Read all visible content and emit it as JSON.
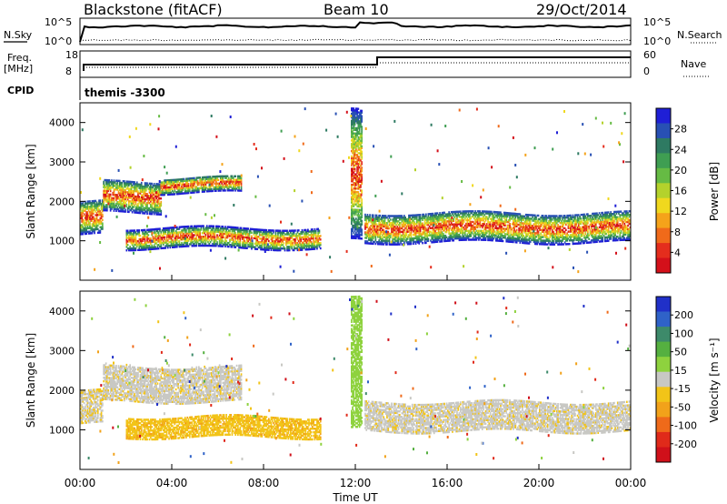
{
  "header": {
    "station": "Blackstone (fitACF)",
    "beam": "Beam 10",
    "date": "29/Oct/2014"
  },
  "params": {
    "nsky_label": "N.Sky",
    "nsky_ticks": [
      "10^5",
      "10^0"
    ],
    "nsearch_label": "N.Search",
    "nsearch_ticks": [
      "10^5",
      "10^0"
    ],
    "freq_label": "Freq.",
    "freq_unit": "[MHz]",
    "freq_ticks": [
      "18",
      "8"
    ],
    "nave_label": "Nave",
    "nave_ticks": [
      "60",
      "0"
    ],
    "cpid_label": "CPID",
    "cpid_value": "themis -3300"
  },
  "chart_data": [
    {
      "type": "heatmap",
      "name": "power",
      "ylabel": "Slant Range [km]",
      "yticks": [
        1000,
        2000,
        3000,
        4000
      ],
      "ylim": [
        0,
        4500
      ],
      "xlim_hours": [
        0,
        24
      ],
      "colorbar_label": "Power [dB]",
      "colorbar_ticks": [
        "28",
        "24",
        "20",
        "16",
        "12",
        "8",
        "4"
      ],
      "colorbar_colors": [
        "#1f1fd6",
        "#2850b4",
        "#2e7a62",
        "#3f9e52",
        "#66bb44",
        "#b4d22c",
        "#f0d81e",
        "#f5a31a",
        "#f06a1a",
        "#e42d1d",
        "#d4101a"
      ],
      "bands": [
        {
          "start_h": 0.0,
          "end_h": 1.0,
          "range_km": [
            1150,
            2000
          ]
        },
        {
          "start_h": 1.0,
          "end_h": 3.5,
          "range_km": [
            1700,
            2500
          ]
        },
        {
          "start_h": 3.5,
          "end_h": 7.0,
          "range_km": [
            2200,
            2600
          ]
        },
        {
          "start_h": 2.0,
          "end_h": 10.5,
          "range_km": [
            800,
            1300
          ]
        },
        {
          "start_h": 11.8,
          "end_h": 12.3,
          "range_km": [
            1000,
            4300
          ]
        },
        {
          "start_h": 12.4,
          "end_h": 24.0,
          "range_km": [
            950,
            1700
          ]
        }
      ]
    },
    {
      "type": "heatmap",
      "name": "velocity",
      "ylabel": "Slant Range [km]",
      "yticks": [
        1000,
        2000,
        3000,
        4000
      ],
      "ylim": [
        0,
        4500
      ],
      "xlim_hours": [
        0,
        24
      ],
      "colorbar_label": "Velocity [m s⁻¹]",
      "colorbar_ticks": [
        "200",
        "100",
        "50",
        "15",
        "-15",
        "-50",
        "-100",
        "-200"
      ],
      "colorbar_colors": [
        "#2030c8",
        "#2f62c8",
        "#3d8a6a",
        "#55b040",
        "#8ed23e",
        "#c8c8c4",
        "#f2c418",
        "#f2a21a",
        "#ef6a1a",
        "#e02a1a",
        "#d0101a"
      ],
      "bands": [
        {
          "start_h": 0.0,
          "end_h": 1.0,
          "range_km": [
            1150,
            2000
          ],
          "velocity": -10
        },
        {
          "start_h": 1.0,
          "end_h": 7.0,
          "range_km": [
            1700,
            2600
          ],
          "velocity": -5
        },
        {
          "start_h": 2.0,
          "end_h": 10.5,
          "range_km": [
            800,
            1300
          ],
          "velocity": -40
        },
        {
          "start_h": 11.8,
          "end_h": 12.3,
          "range_km": [
            1000,
            4300
          ],
          "velocity": 30
        },
        {
          "start_h": 12.4,
          "end_h": 24.0,
          "range_km": [
            950,
            1700
          ],
          "velocity": -5
        }
      ]
    }
  ],
  "x_axis": {
    "ticks": [
      "00:00",
      "04:00",
      "08:00",
      "12:00",
      "16:00",
      "20:00",
      "00:00"
    ],
    "label": "Time UT"
  }
}
